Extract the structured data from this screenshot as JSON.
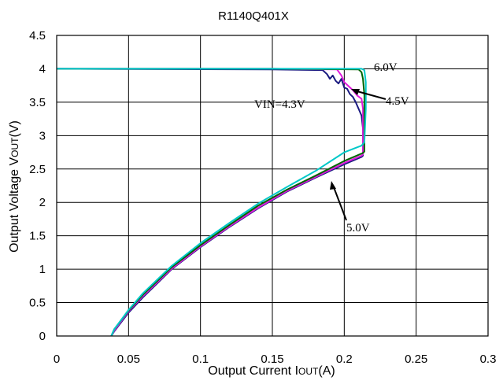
{
  "chart_data": {
    "type": "line",
    "title": "R1140Q401X",
    "xlabel_main": "Output Current I",
    "xlabel_sub": "OUT",
    "xlabel_unit": "(A)",
    "ylabel_main": "Output Voltage V",
    "ylabel_sub": "OUT",
    "ylabel_unit": "(V)",
    "xlim": [
      0,
      0.3
    ],
    "ylim": [
      0,
      4.5
    ],
    "x_ticks": [
      0,
      0.05,
      0.1,
      0.15,
      0.2,
      0.25,
      0.3
    ],
    "x_tick_labels": [
      "0",
      "0.05",
      "0.1",
      "0.15",
      "0.2",
      "0.25",
      "0.3"
    ],
    "y_ticks": [
      0,
      0.5,
      1,
      1.5,
      2,
      2.5,
      3,
      3.5,
      4,
      4.5
    ],
    "y_tick_labels": [
      "0",
      "0.5",
      "1",
      "1.5",
      "2",
      "2.5",
      "3",
      "3.5",
      "4",
      "4.5"
    ],
    "grid": true,
    "series": [
      {
        "name": "VIN=4.3V",
        "color": "#1a1a80",
        "x": [
          0.0,
          0.15,
          0.185,
          0.188,
          0.19,
          0.192,
          0.194,
          0.196,
          0.198,
          0.2,
          0.202,
          0.204,
          0.206,
          0.208,
          0.21,
          0.212,
          0.213,
          0.213,
          0.212,
          0.2,
          0.18,
          0.16,
          0.14,
          0.12,
          0.1,
          0.08,
          0.06,
          0.05,
          0.04,
          0.038
        ],
        "y": [
          4.0,
          3.99,
          3.98,
          3.92,
          3.85,
          3.9,
          3.82,
          3.78,
          3.85,
          3.72,
          3.7,
          3.62,
          3.58,
          3.5,
          3.4,
          3.3,
          3.1,
          2.7,
          2.68,
          2.57,
          2.37,
          2.16,
          1.91,
          1.63,
          1.33,
          1.0,
          0.58,
          0.35,
          0.07,
          0.0
        ]
      },
      {
        "name": "4.5V",
        "color": "#e01adc",
        "x": [
          0.0,
          0.15,
          0.195,
          0.198,
          0.2,
          0.203,
          0.206,
          0.209,
          0.212,
          0.213,
          0.213,
          0.212,
          0.2,
          0.18,
          0.16,
          0.14,
          0.12,
          0.1,
          0.08,
          0.06,
          0.05,
          0.04,
          0.038
        ],
        "y": [
          4.0,
          4.0,
          3.99,
          3.9,
          3.8,
          3.74,
          3.68,
          3.6,
          3.55,
          3.4,
          2.72,
          2.7,
          2.59,
          2.38,
          2.17,
          1.92,
          1.64,
          1.34,
          1.01,
          0.6,
          0.37,
          0.08,
          0.0
        ]
      },
      {
        "name": "5.0V",
        "color": "#006400",
        "x": [
          0.0,
          0.15,
          0.21,
          0.212,
          0.213,
          0.214,
          0.214,
          0.213,
          0.2,
          0.18,
          0.16,
          0.14,
          0.12,
          0.1,
          0.08,
          0.06,
          0.05,
          0.04,
          0.038
        ],
        "y": [
          4.0,
          4.0,
          3.99,
          3.95,
          3.85,
          3.6,
          2.76,
          2.74,
          2.62,
          2.4,
          2.19,
          1.95,
          1.66,
          1.36,
          1.03,
          0.62,
          0.38,
          0.1,
          0.0
        ]
      },
      {
        "name": "6.0V",
        "color": "#00c8c8",
        "x": [
          0.0,
          0.15,
          0.212,
          0.214,
          0.215,
          0.215,
          0.214,
          0.212,
          0.2,
          0.18,
          0.16,
          0.14,
          0.12,
          0.1,
          0.08,
          0.06,
          0.05,
          0.04,
          0.038
        ],
        "y": [
          4.0,
          4.0,
          4.0,
          3.98,
          3.8,
          3.4,
          2.9,
          2.85,
          2.75,
          2.47,
          2.23,
          1.98,
          1.69,
          1.39,
          1.05,
          0.64,
          0.39,
          0.1,
          0.0
        ]
      }
    ],
    "annotations": [
      "6.0V",
      "4.5V",
      "VIN=4.3V",
      "5.0V"
    ]
  }
}
